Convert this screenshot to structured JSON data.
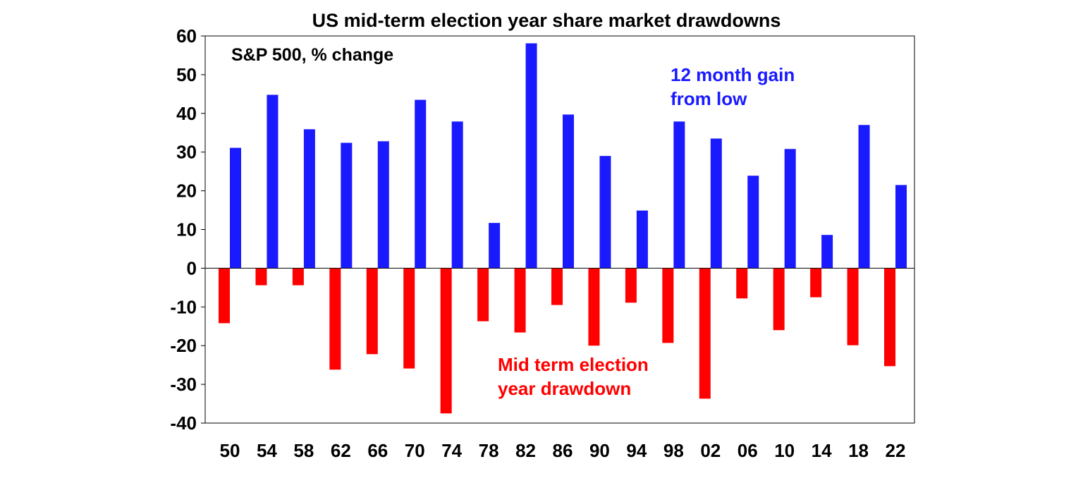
{
  "chart_data": {
    "type": "bar",
    "title": "US mid-term election year share market drawdowns",
    "subtitle": "S&P 500, % change",
    "xlabel": "",
    "ylabel": "",
    "ylim": [
      -40,
      60
    ],
    "yticks": [
      "60",
      "50",
      "40",
      "30",
      "20",
      "10",
      "0",
      "-10",
      "-20",
      "-30",
      "-40"
    ],
    "categories": [
      "50",
      "54",
      "58",
      "62",
      "66",
      "70",
      "74",
      "78",
      "82",
      "86",
      "90",
      "94",
      "98",
      "02",
      "06",
      "10",
      "14",
      "18",
      "22"
    ],
    "series": [
      {
        "name": "Mid term election year drawdown",
        "color": "#ff0000",
        "values": [
          -14.2,
          -4.4,
          -4.4,
          -26.2,
          -22.2,
          -25.9,
          -37.5,
          -13.7,
          -16.6,
          -9.5,
          -20.0,
          -8.9,
          -19.3,
          -33.7,
          -7.8,
          -16.0,
          -7.5,
          -19.9,
          -25.3
        ]
      },
      {
        "name": "12 month gain from low",
        "color": "#1a1aff",
        "values": [
          31.1,
          44.8,
          35.9,
          32.4,
          32.8,
          43.5,
          37.9,
          11.7,
          58.1,
          39.7,
          29.0,
          14.9,
          37.9,
          33.5,
          23.9,
          30.8,
          8.6,
          37.0,
          21.5
        ]
      }
    ],
    "annotations": {
      "gain_line1": "12 month gain",
      "gain_line2": "from low",
      "draw_line1": "Mid term election",
      "draw_line2": "year drawdown"
    },
    "grid": false
  }
}
